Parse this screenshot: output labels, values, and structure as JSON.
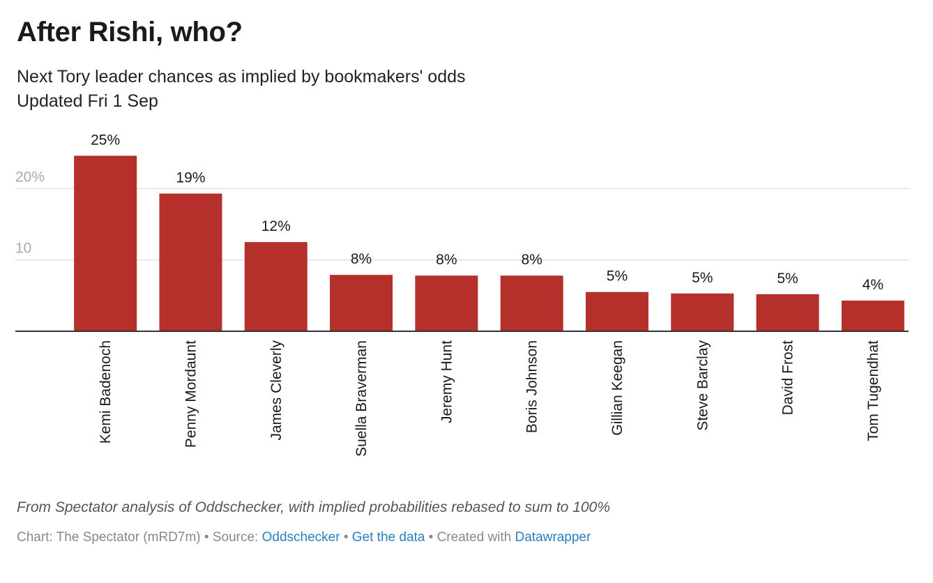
{
  "header": {
    "title": "After Rishi, who?",
    "subtitle_line1": "Next Tory leader chances as implied by bookmakers' odds",
    "subtitle_line2": "Updated Fri 1 Sep"
  },
  "footer": {
    "notes": "From Spectator analysis of Oddschecker, with implied probabilities rebased to sum to 100%",
    "chart_credit": "Chart: The Spectator (mRD7m)",
    "source_label": "Source:",
    "source_link": "Oddschecker",
    "get_data_link": "Get the data",
    "created_with_label": "Created with",
    "datawrapper_link": "Datawrapper",
    "separator": "•"
  },
  "colors": {
    "bar": "#b5302a",
    "grid": "#e0e0e0",
    "axis": "#333333",
    "tick_label": "#aaaaaa",
    "link": "#2a7fc1"
  },
  "chart_data": {
    "type": "bar",
    "categories": [
      "Kemi Badenoch",
      "Penny Mordaunt",
      "James Cleverly",
      "Suella Braverman",
      "Jeremy Hunt",
      "Boris Johnson",
      "Gillian Keegan",
      "Steve Barclay",
      "David Frost",
      "Tom Tugendhat"
    ],
    "values": [
      24.6,
      19.3,
      12.5,
      7.9,
      7.8,
      7.8,
      5.5,
      5.3,
      5.2,
      4.3
    ],
    "value_labels": [
      "25%",
      "19%",
      "12%",
      "8%",
      "8%",
      "8%",
      "5%",
      "5%",
      "5%",
      "4%"
    ],
    "ylim": [
      0,
      25
    ],
    "y_ticks": [
      10,
      20
    ],
    "y_tick_labels": [
      "10",
      "20%"
    ],
    "grid": true,
    "xlabel": "",
    "ylabel": ""
  }
}
